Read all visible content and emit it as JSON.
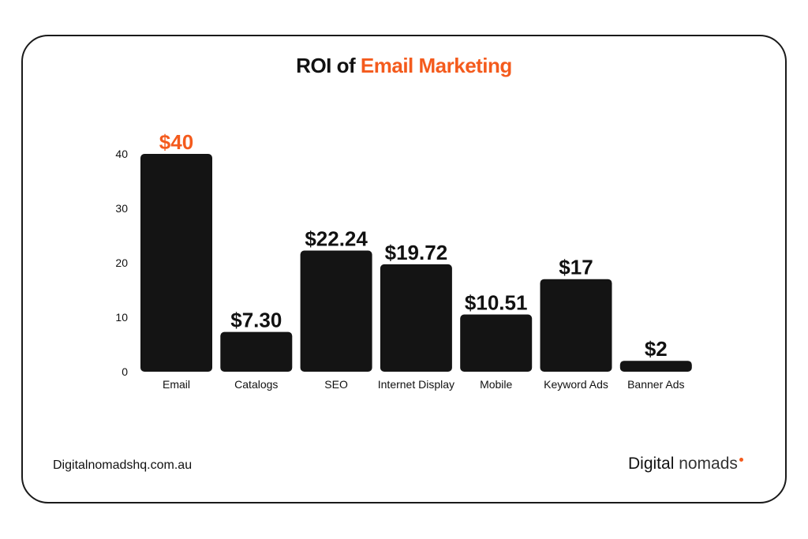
{
  "title": {
    "prefix": "ROI of",
    "highlight": "Email Marketing"
  },
  "footer": {
    "website": "Digitalnomadshq.com.au",
    "brand_primary": "Digital",
    "brand_secondary": "nomads"
  },
  "colors": {
    "accent": "#f45b1d",
    "bar": "#141414",
    "text": "#111111"
  },
  "chart_data": {
    "type": "bar",
    "title": "ROI of Email Marketing",
    "xlabel": "",
    "ylabel": "",
    "ylim": [
      0,
      40
    ],
    "yticks": [
      0,
      10,
      20,
      30,
      40
    ],
    "grid": false,
    "categories": [
      "Email",
      "Catalogs",
      "SEO",
      "Internet Display",
      "Mobile",
      "Keyword Ads",
      "Banner Ads"
    ],
    "values": [
      40,
      7.3,
      22.24,
      19.72,
      10.51,
      17,
      2
    ],
    "data_labels": [
      "$40",
      "$7.30",
      "$22.24",
      "$19.72",
      "$10.51",
      "$17",
      "$2"
    ],
    "highlight_index": 0
  }
}
